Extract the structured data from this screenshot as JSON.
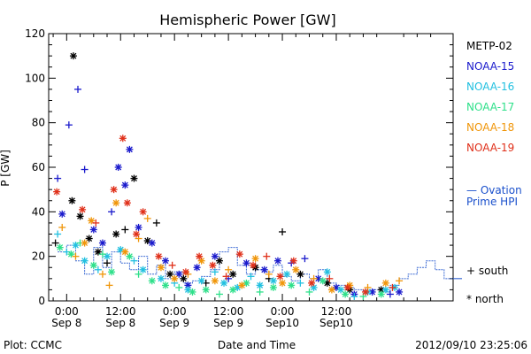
{
  "chart_data": {
    "type": "scatter",
    "title": "Hemispheric Power [GW]",
    "xlabel": "Date and Time",
    "ylabel": "P [GW]",
    "ylim": [
      0,
      120
    ],
    "yticks": [
      0,
      20,
      40,
      60,
      80,
      100,
      120
    ],
    "xlim_hours": [
      -4,
      86
    ],
    "xticks": [
      {
        "hour": 0,
        "line1": "0:00",
        "line2": "Sep 8"
      },
      {
        "hour": 12,
        "line1": "12:00",
        "line2": "Sep 8"
      },
      {
        "hour": 24,
        "line1": "0:00",
        "line2": "Sep 9"
      },
      {
        "hour": 36,
        "line1": "12:00",
        "line2": "Sep 9"
      },
      {
        "hour": 48,
        "line1": "0:00",
        "line2": "Sep10"
      },
      {
        "hour": 60,
        "line1": "12:00",
        "line2": "Sep10"
      }
    ],
    "footer_left": "Plot: CCMC",
    "footer_right": "2012/09/10 23:25:06",
    "legend_position": "right",
    "series": [
      {
        "name": "METP-02",
        "color": "#000000"
      },
      {
        "name": "NOAA-15",
        "color": "#1a1acc"
      },
      {
        "name": "NOAA-16",
        "color": "#22c0e0"
      },
      {
        "name": "NOAA-17",
        "color": "#2ee08a"
      },
      {
        "name": "NOAA-18",
        "color": "#f0960a"
      },
      {
        "name": "NOAA-19",
        "color": "#e0301a"
      }
    ],
    "ovation": {
      "name_line1": "— Ovation",
      "name_line2": "Prime HPI",
      "color": "#1a50cc",
      "x": [
        -2,
        0,
        2,
        4,
        6,
        8,
        10,
        12,
        14,
        16,
        18,
        20,
        22,
        24,
        26,
        28,
        30,
        32,
        34,
        36,
        38,
        40,
        42,
        44,
        46,
        48,
        50,
        52,
        54,
        56,
        58,
        60,
        62,
        64,
        66,
        68,
        70,
        72,
        74,
        76,
        78,
        80,
        82,
        84,
        86
      ],
      "y": [
        22,
        25,
        18,
        12,
        24,
        15,
        22,
        17,
        14,
        20,
        12,
        16,
        10,
        13,
        8,
        9,
        11,
        14,
        22,
        24,
        16,
        12,
        14,
        13,
        16,
        11,
        9,
        12,
        10,
        14,
        8,
        7,
        6,
        5,
        4,
        5,
        4,
        7,
        10,
        12,
        15,
        18,
        14,
        10,
        10
      ]
    },
    "markers": [
      {
        "symbol": "+",
        "label": "south"
      },
      {
        "symbol": "*",
        "label": "north"
      }
    ],
    "points": [
      {
        "s": 0,
        "x": 1.5,
        "y": 110,
        "m": "*"
      },
      {
        "s": 0,
        "x": 1.2,
        "y": 45,
        "m": "*"
      },
      {
        "s": 0,
        "x": 3,
        "y": 38,
        "m": "*"
      },
      {
        "s": 0,
        "x": 5,
        "y": 28,
        "m": "*"
      },
      {
        "s": 0,
        "x": 7,
        "y": 22,
        "m": "*"
      },
      {
        "s": 0,
        "x": 11,
        "y": 30,
        "m": "*"
      },
      {
        "s": 0,
        "x": 15,
        "y": 55,
        "m": "*"
      },
      {
        "s": 0,
        "x": 18,
        "y": 27,
        "m": "*"
      },
      {
        "s": 0,
        "x": 20,
        "y": 35,
        "m": "+"
      },
      {
        "s": 0,
        "x": 26,
        "y": 10,
        "m": "*"
      },
      {
        "s": 0,
        "x": 31,
        "y": 8,
        "m": "+"
      },
      {
        "s": 0,
        "x": 37,
        "y": 12,
        "m": "*"
      },
      {
        "s": 0,
        "x": 42,
        "y": 15,
        "m": "*"
      },
      {
        "s": 0,
        "x": 48,
        "y": 31,
        "m": "+"
      },
      {
        "s": 0,
        "x": 52,
        "y": 12,
        "m": "*"
      },
      {
        "s": 0,
        "x": 58,
        "y": 8,
        "m": "*"
      },
      {
        "s": 0,
        "x": 63,
        "y": 5,
        "m": "*"
      },
      {
        "s": 0,
        "x": 70,
        "y": 5,
        "m": "*"
      },
      {
        "s": 0,
        "x": -2.5,
        "y": 26,
        "m": "+"
      },
      {
        "s": 0,
        "x": 9,
        "y": 17,
        "m": "+"
      },
      {
        "s": 0,
        "x": 13,
        "y": 32,
        "m": "+"
      },
      {
        "s": 0,
        "x": 23,
        "y": 12,
        "m": "*"
      },
      {
        "s": 0,
        "x": 34,
        "y": 18,
        "m": "*"
      },
      {
        "s": 0,
        "x": 45,
        "y": 10,
        "m": "+"
      },
      {
        "s": 1,
        "x": -2,
        "y": 55,
        "m": "+"
      },
      {
        "s": 1,
        "x": 0.5,
        "y": 79,
        "m": "+"
      },
      {
        "s": 1,
        "x": 2.5,
        "y": 95,
        "m": "+"
      },
      {
        "s": 1,
        "x": 4,
        "y": 59,
        "m": "+"
      },
      {
        "s": 1,
        "x": -1,
        "y": 39,
        "m": "*"
      },
      {
        "s": 1,
        "x": 6,
        "y": 32,
        "m": "*"
      },
      {
        "s": 1,
        "x": 10,
        "y": 40,
        "m": "+"
      },
      {
        "s": 1,
        "x": 11.5,
        "y": 60,
        "m": "*"
      },
      {
        "s": 1,
        "x": 13,
        "y": 52,
        "m": "*"
      },
      {
        "s": 1,
        "x": 14,
        "y": 68,
        "m": "*"
      },
      {
        "s": 1,
        "x": 16,
        "y": 33,
        "m": "*"
      },
      {
        "s": 1,
        "x": 19,
        "y": 26,
        "m": "*"
      },
      {
        "s": 1,
        "x": 22,
        "y": 18,
        "m": "*"
      },
      {
        "s": 1,
        "x": 25,
        "y": 12,
        "m": "*"
      },
      {
        "s": 1,
        "x": 29,
        "y": 15,
        "m": "*"
      },
      {
        "s": 1,
        "x": 33,
        "y": 20,
        "m": "*"
      },
      {
        "s": 1,
        "x": 36,
        "y": 10,
        "m": "+"
      },
      {
        "s": 1,
        "x": 40,
        "y": 17,
        "m": "*"
      },
      {
        "s": 1,
        "x": 44,
        "y": 14,
        "m": "*"
      },
      {
        "s": 1,
        "x": 47,
        "y": 18,
        "m": "*"
      },
      {
        "s": 1,
        "x": 50,
        "y": 17,
        "m": "+"
      },
      {
        "s": 1,
        "x": 53,
        "y": 19,
        "m": "+"
      },
      {
        "s": 1,
        "x": 56,
        "y": 10,
        "m": "*"
      },
      {
        "s": 1,
        "x": 60,
        "y": 6,
        "m": "*"
      },
      {
        "s": 1,
        "x": 64,
        "y": 3,
        "m": "*"
      },
      {
        "s": 1,
        "x": 68,
        "y": 4,
        "m": "*"
      },
      {
        "s": 1,
        "x": 72,
        "y": 3,
        "m": "+"
      },
      {
        "s": 1,
        "x": 74,
        "y": 4,
        "m": "*"
      },
      {
        "s": 1,
        "x": 8,
        "y": 26,
        "m": "*"
      },
      {
        "s": 1,
        "x": 27,
        "y": 7,
        "m": "*"
      },
      {
        "s": 2,
        "x": -2,
        "y": 30,
        "m": "+"
      },
      {
        "s": 2,
        "x": 0,
        "y": 22,
        "m": "+"
      },
      {
        "s": 2,
        "x": 2,
        "y": 25,
        "m": "*"
      },
      {
        "s": 2,
        "x": 4,
        "y": 18,
        "m": "*"
      },
      {
        "s": 2,
        "x": 7,
        "y": 14,
        "m": "+"
      },
      {
        "s": 2,
        "x": 9,
        "y": 20,
        "m": "*"
      },
      {
        "s": 2,
        "x": 12,
        "y": 23,
        "m": "*"
      },
      {
        "s": 2,
        "x": 15,
        "y": 18,
        "m": "+"
      },
      {
        "s": 2,
        "x": 17,
        "y": 14,
        "m": "*"
      },
      {
        "s": 2,
        "x": 21,
        "y": 10,
        "m": "*"
      },
      {
        "s": 2,
        "x": 24,
        "y": 8,
        "m": "+"
      },
      {
        "s": 2,
        "x": 27,
        "y": 5,
        "m": "*"
      },
      {
        "s": 2,
        "x": 30,
        "y": 9,
        "m": "*"
      },
      {
        "s": 2,
        "x": 33,
        "y": 13,
        "m": "+"
      },
      {
        "s": 2,
        "x": 35,
        "y": 8,
        "m": "*"
      },
      {
        "s": 2,
        "x": 38,
        "y": 6,
        "m": "*"
      },
      {
        "s": 2,
        "x": 41,
        "y": 11,
        "m": "+"
      },
      {
        "s": 2,
        "x": 43,
        "y": 7,
        "m": "*"
      },
      {
        "s": 2,
        "x": 46,
        "y": 9,
        "m": "*"
      },
      {
        "s": 2,
        "x": 49,
        "y": 12,
        "m": "*"
      },
      {
        "s": 2,
        "x": 52,
        "y": 8,
        "m": "+"
      },
      {
        "s": 2,
        "x": 55,
        "y": 6,
        "m": "*"
      },
      {
        "s": 2,
        "x": 58,
        "y": 13,
        "m": "*"
      },
      {
        "s": 2,
        "x": 61,
        "y": 5,
        "m": "*"
      },
      {
        "s": 2,
        "x": 64,
        "y": 2,
        "m": "+"
      },
      {
        "s": 2,
        "x": 67,
        "y": 4,
        "m": "*"
      },
      {
        "s": 2,
        "x": 71,
        "y": 5,
        "m": "*"
      },
      {
        "s": 2,
        "x": 73,
        "y": 6,
        "m": "*"
      },
      {
        "s": 3,
        "x": -1.5,
        "y": 24,
        "m": "*"
      },
      {
        "s": 3,
        "x": 1,
        "y": 21,
        "m": "*"
      },
      {
        "s": 3,
        "x": 3,
        "y": 26,
        "m": "+"
      },
      {
        "s": 3,
        "x": 6,
        "y": 16,
        "m": "*"
      },
      {
        "s": 3,
        "x": 8,
        "y": 21,
        "m": "+"
      },
      {
        "s": 3,
        "x": 10,
        "y": 13,
        "m": "*"
      },
      {
        "s": 3,
        "x": 14,
        "y": 20,
        "m": "*"
      },
      {
        "s": 3,
        "x": 16,
        "y": 12,
        "m": "+"
      },
      {
        "s": 3,
        "x": 19,
        "y": 9,
        "m": "*"
      },
      {
        "s": 3,
        "x": 22,
        "y": 7,
        "m": "*"
      },
      {
        "s": 3,
        "x": 25,
        "y": 6,
        "m": "+"
      },
      {
        "s": 3,
        "x": 28,
        "y": 4,
        "m": "*"
      },
      {
        "s": 3,
        "x": 31,
        "y": 5,
        "m": "*"
      },
      {
        "s": 3,
        "x": 34,
        "y": 3,
        "m": "+"
      },
      {
        "s": 3,
        "x": 37,
        "y": 5,
        "m": "*"
      },
      {
        "s": 3,
        "x": 40,
        "y": 8,
        "m": "*"
      },
      {
        "s": 3,
        "x": 43,
        "y": 4,
        "m": "+"
      },
      {
        "s": 3,
        "x": 46,
        "y": 6,
        "m": "*"
      },
      {
        "s": 3,
        "x": 50,
        "y": 7,
        "m": "*"
      },
      {
        "s": 3,
        "x": 54,
        "y": 4,
        "m": "+"
      },
      {
        "s": 3,
        "x": 57,
        "y": 9,
        "m": "*"
      },
      {
        "s": 3,
        "x": 62,
        "y": 3,
        "m": "*"
      },
      {
        "s": 3,
        "x": 66,
        "y": 2,
        "m": "+"
      },
      {
        "s": 3,
        "x": 70,
        "y": 3,
        "m": "*"
      },
      {
        "s": 4,
        "x": -1,
        "y": 33,
        "m": "+"
      },
      {
        "s": 4,
        "x": 2,
        "y": 20,
        "m": "+"
      },
      {
        "s": 4,
        "x": 4,
        "y": 26,
        "m": "*"
      },
      {
        "s": 4,
        "x": 5.5,
        "y": 36,
        "m": "*"
      },
      {
        "s": 4,
        "x": 8,
        "y": 12,
        "m": "+"
      },
      {
        "s": 4,
        "x": 9.5,
        "y": 7,
        "m": "+"
      },
      {
        "s": 4,
        "x": 11,
        "y": 44,
        "m": "*"
      },
      {
        "s": 4,
        "x": 13,
        "y": 22,
        "m": "*"
      },
      {
        "s": 4,
        "x": 16,
        "y": 28,
        "m": "+"
      },
      {
        "s": 4,
        "x": 18,
        "y": 37,
        "m": "+"
      },
      {
        "s": 4,
        "x": 21,
        "y": 15,
        "m": "*"
      },
      {
        "s": 4,
        "x": 24,
        "y": 10,
        "m": "*"
      },
      {
        "s": 4,
        "x": 27,
        "y": 12,
        "m": "+"
      },
      {
        "s": 4,
        "x": 30,
        "y": 18,
        "m": "*"
      },
      {
        "s": 4,
        "x": 33,
        "y": 9,
        "m": "*"
      },
      {
        "s": 4,
        "x": 36,
        "y": 14,
        "m": "+"
      },
      {
        "s": 4,
        "x": 39,
        "y": 7,
        "m": "*"
      },
      {
        "s": 4,
        "x": 42,
        "y": 19,
        "m": "*"
      },
      {
        "s": 4,
        "x": 45,
        "y": 12,
        "m": "+"
      },
      {
        "s": 4,
        "x": 48,
        "y": 8,
        "m": "*"
      },
      {
        "s": 4,
        "x": 51,
        "y": 14,
        "m": "*"
      },
      {
        "s": 4,
        "x": 55,
        "y": 10,
        "m": "+"
      },
      {
        "s": 4,
        "x": 59,
        "y": 5,
        "m": "*"
      },
      {
        "s": 4,
        "x": 63,
        "y": 7,
        "m": "*"
      },
      {
        "s": 4,
        "x": 67,
        "y": 6,
        "m": "+"
      },
      {
        "s": 4,
        "x": 71,
        "y": 8,
        "m": "*"
      },
      {
        "s": 4,
        "x": 74,
        "y": 9,
        "m": "+"
      },
      {
        "s": 5,
        "x": -2.2,
        "y": 49,
        "m": "*"
      },
      {
        "s": 5,
        "x": 3.5,
        "y": 41,
        "m": "*"
      },
      {
        "s": 5,
        "x": 6.5,
        "y": 35,
        "m": "+"
      },
      {
        "s": 5,
        "x": 10.5,
        "y": 50,
        "m": "*"
      },
      {
        "s": 5,
        "x": 12.5,
        "y": 73,
        "m": "*"
      },
      {
        "s": 5,
        "x": 13.5,
        "y": 44,
        "m": "*"
      },
      {
        "s": 5,
        "x": 15.5,
        "y": 30,
        "m": "*"
      },
      {
        "s": 5,
        "x": 17,
        "y": 40,
        "m": "*"
      },
      {
        "s": 5,
        "x": 20.5,
        "y": 20,
        "m": "*"
      },
      {
        "s": 5,
        "x": 23.5,
        "y": 16,
        "m": "+"
      },
      {
        "s": 5,
        "x": 26.5,
        "y": 13,
        "m": "*"
      },
      {
        "s": 5,
        "x": 29.5,
        "y": 20,
        "m": "*"
      },
      {
        "s": 5,
        "x": 32.5,
        "y": 16,
        "m": "*"
      },
      {
        "s": 5,
        "x": 35.5,
        "y": 11,
        "m": "+"
      },
      {
        "s": 5,
        "x": 38.5,
        "y": 21,
        "m": "*"
      },
      {
        "s": 5,
        "x": 41.5,
        "y": 16,
        "m": "*"
      },
      {
        "s": 5,
        "x": 44.5,
        "y": 20,
        "m": "+"
      },
      {
        "s": 5,
        "x": 47.5,
        "y": 11,
        "m": "*"
      },
      {
        "s": 5,
        "x": 50.5,
        "y": 18,
        "m": "*"
      },
      {
        "s": 5,
        "x": 54.5,
        "y": 8,
        "m": "*"
      },
      {
        "s": 5,
        "x": 58.5,
        "y": 10,
        "m": "+"
      },
      {
        "s": 5,
        "x": 62.5,
        "y": 6,
        "m": "*"
      },
      {
        "s": 5,
        "x": 66.5,
        "y": 4,
        "m": "*"
      },
      {
        "s": 5,
        "x": 72.5,
        "y": 6,
        "m": "+"
      }
    ]
  }
}
